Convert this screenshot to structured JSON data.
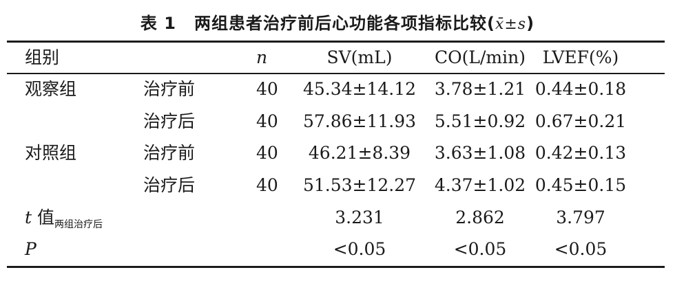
{
  "title": {
    "num": "表 1",
    "text": "两组患者治疗前后心功能各项指标比较",
    "stat_open": "(",
    "stat": "x̄±s",
    "stat_close": ")"
  },
  "header": {
    "group": "组别",
    "n": "n",
    "sv": "SV(mL)",
    "co": "CO(L/min)",
    "lvef": "LVEF(%)"
  },
  "rows": [
    {
      "group": "观察组",
      "treatment": "治疗前",
      "n": "40",
      "sv": "45.34±14.12",
      "co": "3.78±1.21",
      "lvef": "0.44±0.18"
    },
    {
      "group": "",
      "treatment": "治疗后",
      "n": "40",
      "sv": "57.86±11.93",
      "co": "5.51±0.92",
      "lvef": "0.67±0.21"
    },
    {
      "group": "对照组",
      "treatment": "治疗前",
      "n": "40",
      "sv": "46.21±8.39",
      "co": "3.63±1.08",
      "lvef": "0.42±0.13"
    },
    {
      "group": "",
      "treatment": "治疗后",
      "n": "40",
      "sv": "51.53±12.27",
      "co": "4.37±1.02",
      "lvef": "0.45±0.15"
    }
  ],
  "t_row": {
    "label_t": "t",
    "label_value": " 值",
    "label_sub": "两组治疗后",
    "sv": "3.231",
    "co": "2.862",
    "lvef": "3.797"
  },
  "p_row": {
    "label": "P",
    "sv": "<0.05",
    "co": "<0.05",
    "lvef": "<0.05"
  }
}
